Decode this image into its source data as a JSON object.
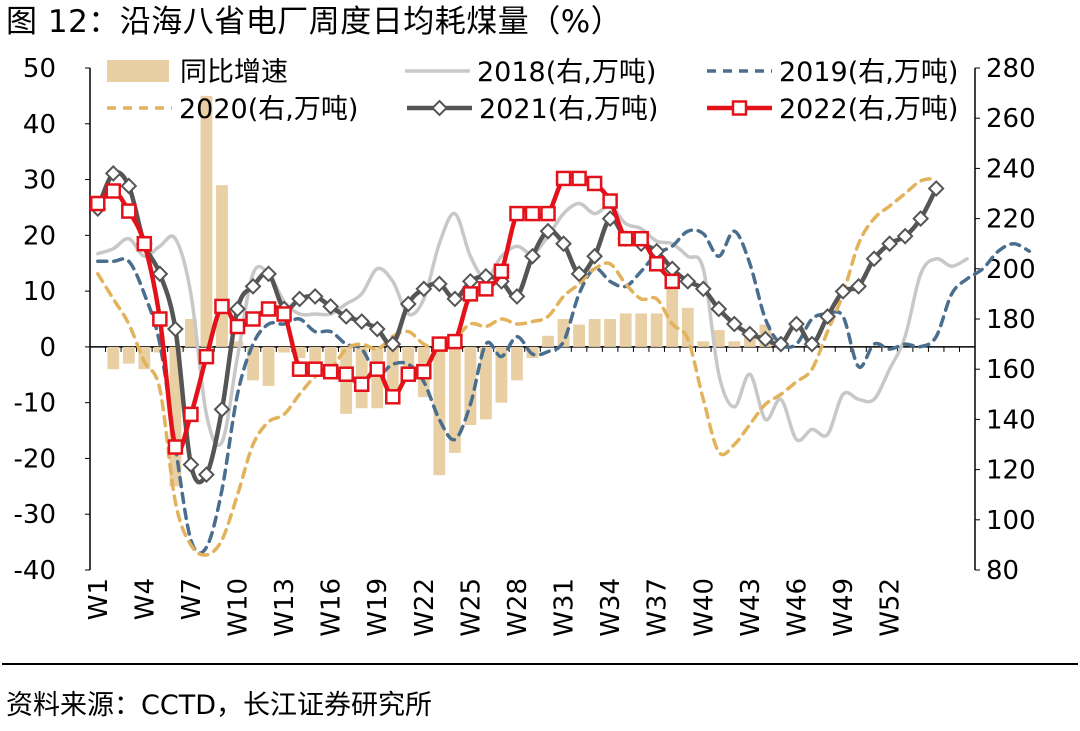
{
  "title": "图 12：沿海八省电厂周度日均耗煤量（%）",
  "source": "资料来源：CCTD，长江证券研究所",
  "chart_data": {
    "type": "bar+line",
    "title": "沿海八省电厂周度日均耗煤量（%）",
    "x_tick_labels": [
      "W1",
      "W4",
      "W7",
      "W10",
      "W13",
      "W16",
      "W19",
      "W22",
      "W25",
      "W28",
      "W31",
      "W34",
      "W37",
      "W40",
      "W43",
      "W46",
      "W49",
      "W52"
    ],
    "left_axis": {
      "unit": "%",
      "ylim": [
        -40,
        50
      ],
      "ticks": [
        50,
        40,
        30,
        20,
        10,
        0,
        -10,
        -20,
        -30,
        -40
      ]
    },
    "right_axis": {
      "unit": "万吨",
      "ylim": [
        80,
        280
      ],
      "ticks": [
        280,
        260,
        240,
        220,
        200,
        180,
        160,
        140,
        120,
        100,
        80
      ]
    },
    "bar_series": {
      "name": "同比增速",
      "axis": "left",
      "color": "#e8cfa4",
      "values": [
        null,
        -4,
        -3,
        -4,
        -1,
        -25,
        5,
        45,
        29,
        1,
        -6,
        -7,
        -1,
        -2,
        -3,
        -5,
        -12,
        -11,
        -11,
        -9,
        -5,
        -9,
        -23,
        -19,
        -14,
        -13,
        -10,
        -6,
        -2,
        2,
        5,
        4,
        5,
        5,
        6,
        6,
        6,
        12,
        7,
        1,
        3,
        1,
        3,
        4
      ]
    },
    "series": [
      {
        "name": "2018(右,万吨)",
        "axis": "right",
        "color": "#c8c8c8",
        "style": "solid",
        "values": [
          206,
          208,
          212,
          205,
          209,
          212,
          190,
          142,
          131,
          165,
          198,
          198,
          187,
          182,
          182,
          182,
          186,
          190,
          200,
          195,
          182,
          188,
          210,
          222,
          205,
          196,
          205,
          209,
          206,
          213,
          222,
          226,
          222,
          225,
          218,
          216,
          211,
          210,
          205,
          200,
          158,
          145,
          158,
          140,
          148,
          132,
          136,
          134,
          150,
          148,
          148,
          160,
          173,
          198,
          204,
          201,
          204
        ]
      },
      {
        "name": "2019(右,万吨)",
        "axis": "right",
        "color": "#4a6e8e",
        "style": "dashed",
        "values": [
          203,
          203,
          203,
          190,
          170,
          129,
          92,
          89,
          112,
          150,
          170,
          178,
          178,
          180,
          175,
          175,
          170,
          168,
          158,
          162,
          162,
          155,
          140,
          132,
          146,
          170,
          165,
          173,
          166,
          167,
          171,
          190,
          200,
          195,
          193,
          199,
          206,
          209,
          215,
          214,
          205,
          215,
          202,
          180,
          170,
          170,
          180,
          182,
          181,
          161,
          170,
          168,
          170,
          169,
          173,
          190,
          196,
          200,
          207,
          210,
          207
        ]
      },
      {
        "name": "2020(右,万吨)",
        "axis": "right",
        "color": "#e2b25c",
        "style": "dashed",
        "values": [
          198,
          188,
          178,
          163,
          152,
          107,
          90,
          86,
          92,
          110,
          130,
          139,
          142,
          150,
          157,
          160,
          168,
          170,
          168,
          173,
          175,
          170,
          168,
          172,
          178,
          177,
          180,
          178,
          179,
          181,
          189,
          194,
          200,
          202,
          194,
          188,
          188,
          178,
          172,
          148,
          127,
          130,
          138,
          146,
          150,
          155,
          160,
          175,
          190,
          210,
          220,
          225,
          230,
          235,
          236
        ]
      },
      {
        "name": "2021(右,万吨)",
        "axis": "right",
        "color": "#555555",
        "style": "solid",
        "marker": "diamond",
        "values": [
          224,
          238,
          233,
          210,
          198,
          176,
          122,
          118,
          144,
          184,
          193,
          198,
          184,
          188,
          189,
          185,
          181,
          179,
          176,
          170,
          186,
          192,
          194,
          188,
          195,
          197,
          195,
          189,
          205,
          215,
          210,
          198,
          205,
          220,
          212,
          210,
          207,
          200,
          195,
          192,
          184,
          178,
          174,
          172,
          170,
          178,
          170,
          181,
          191,
          193,
          204,
          210,
          213,
          220,
          232
        ]
      },
      {
        "name": "2022(右,万吨)",
        "axis": "right",
        "color": "#e3121a",
        "style": "solid",
        "marker": "square",
        "values": [
          226,
          231,
          223,
          210,
          180,
          129,
          142,
          165,
          185,
          177,
          180,
          184,
          182,
          160,
          160,
          159,
          158,
          154,
          160,
          149,
          158,
          159,
          170,
          171,
          190,
          192,
          199,
          222,
          222,
          222,
          236,
          236,
          234,
          227,
          212,
          212,
          202,
          195
        ]
      }
    ]
  }
}
